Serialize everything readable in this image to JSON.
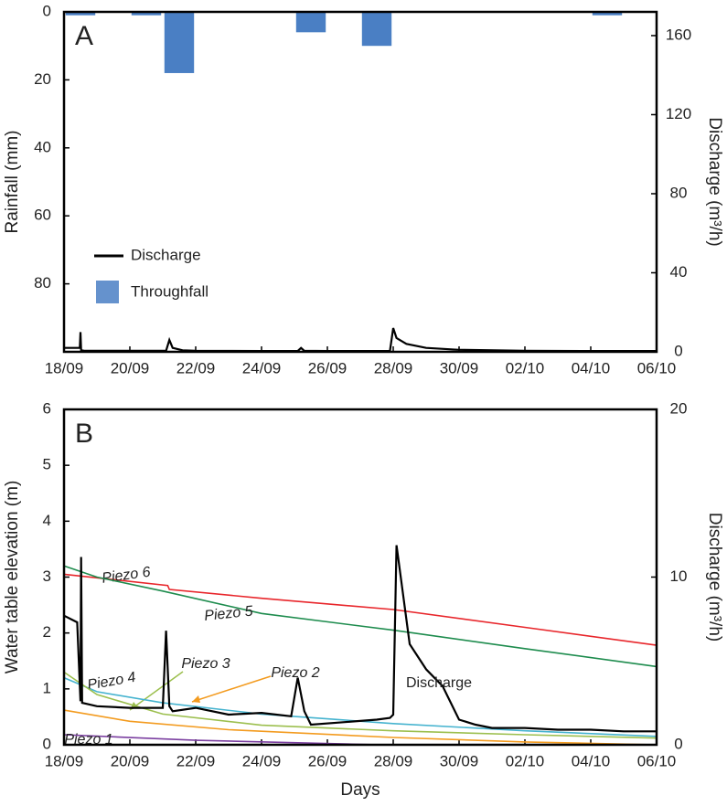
{
  "chart_data": [
    {
      "type": "combo",
      "panel_label": "A",
      "ylabel": "Rainfall (mm)",
      "y2label": "Discharge (m³/h)",
      "xlim": [
        0,
        18
      ],
      "xticks": [
        {
          "value": 0,
          "label": "18/09"
        },
        {
          "value": 2,
          "label": "20/09"
        },
        {
          "value": 4,
          "label": "22/09"
        },
        {
          "value": 6,
          "label": "24/09"
        },
        {
          "value": 8,
          "label": "26/09"
        },
        {
          "value": 10,
          "label": "28/09"
        },
        {
          "value": 12,
          "label": "30/09"
        },
        {
          "value": 14,
          "label": "02/10"
        },
        {
          "value": 16,
          "label": "04/10"
        },
        {
          "value": 18,
          "label": "06/10"
        }
      ],
      "ylim": [
        0,
        100
      ],
      "y_inverted": true,
      "yticks": [
        0,
        20,
        40,
        60,
        80
      ],
      "y2lim": [
        0,
        172
      ],
      "y2ticks": [
        0,
        40,
        80,
        120,
        160
      ],
      "legend": "lower left",
      "series": [
        {
          "name": "Discharge",
          "type": "line",
          "axis": "y2",
          "color": "#000000",
          "x": [
            0,
            0.48,
            0.5,
            0.52,
            0.6,
            1,
            2,
            3.1,
            3.2,
            3.3,
            3.6,
            4,
            6,
            7.1,
            7.2,
            7.3,
            8,
            9.9,
            10.0,
            10.1,
            10.4,
            11,
            12,
            14,
            16,
            18
          ],
          "values": [
            2,
            2,
            10,
            0.8,
            0.6,
            0.5,
            0.5,
            0.5,
            6,
            2,
            0.8,
            0.5,
            0.4,
            0.4,
            2,
            0.5,
            0.4,
            0.4,
            12,
            7,
            4,
            2,
            1,
            0.5,
            0.4,
            0.4
          ]
        },
        {
          "name": "Throughfall",
          "type": "bar",
          "color": "#4a7fc4",
          "x": [
            0.5,
            2.5,
            3.5,
            7.5,
            9.5,
            16.5
          ],
          "values": [
            1,
            1,
            18,
            6,
            10,
            1
          ]
        }
      ]
    },
    {
      "type": "line",
      "panel_label": "B",
      "xlabel": "Days",
      "ylabel": "Water table elevation (m)",
      "y2label": "Discharge (m³/h)",
      "xlim": [
        0,
        18
      ],
      "xticks": [
        {
          "value": 0,
          "label": "18/09"
        },
        {
          "value": 2,
          "label": "20/09"
        },
        {
          "value": 4,
          "label": "22/09"
        },
        {
          "value": 6,
          "label": "24/09"
        },
        {
          "value": 8,
          "label": "26/09"
        },
        {
          "value": 10,
          "label": "28/09"
        },
        {
          "value": 12,
          "label": "30/09"
        },
        {
          "value": 14,
          "label": "02/10"
        },
        {
          "value": 16,
          "label": "04/10"
        },
        {
          "value": 18,
          "label": "06/10"
        }
      ],
      "ylim": [
        0,
        6
      ],
      "yticks": [
        0,
        1,
        2,
        3,
        4,
        5,
        6
      ],
      "y2lim": [
        0,
        20
      ],
      "y2ticks": [
        0,
        10,
        20
      ],
      "series": [
        {
          "name": "Piezo 6",
          "color": "#e8262b",
          "x": [
            0,
            3.15,
            3.2,
            6,
            10,
            14,
            18
          ],
          "values": [
            3.05,
            2.85,
            2.78,
            2.62,
            2.42,
            2.1,
            1.78
          ]
        },
        {
          "name": "Piezo 5",
          "color": "#1e8c4e",
          "x": [
            0,
            1,
            3,
            6,
            10,
            14,
            18
          ],
          "values": [
            3.2,
            3.0,
            2.75,
            2.35,
            2.05,
            1.72,
            1.4
          ]
        },
        {
          "name": "Piezo 4",
          "color": "#45b3cf",
          "x": [
            0,
            1,
            3,
            6,
            10,
            14,
            18
          ],
          "values": [
            1.2,
            0.95,
            0.75,
            0.55,
            0.38,
            0.25,
            0.15
          ]
        },
        {
          "name": "Piezo 3",
          "color": "#9cbf4e",
          "x": [
            0,
            1,
            3,
            6,
            10,
            14,
            18
          ],
          "values": [
            1.3,
            0.9,
            0.55,
            0.35,
            0.25,
            0.18,
            0.12
          ]
        },
        {
          "name": "Piezo 2",
          "color": "#f39b1f",
          "x": [
            0,
            2,
            5,
            10,
            14,
            18
          ],
          "values": [
            0.62,
            0.42,
            0.27,
            0.13,
            0.05,
            0
          ]
        },
        {
          "name": "Piezo 1",
          "color": "#7b3fa0",
          "x": [
            0,
            4,
            9.6
          ],
          "values": [
            0.18,
            0.08,
            0
          ]
        },
        {
          "name": "Discharge",
          "color": "#000000",
          "axis": "y2",
          "x": [
            0,
            0.4,
            0.5,
            0.52,
            0.55,
            1,
            2,
            3.0,
            3.1,
            3.2,
            3.3,
            4,
            5,
            6,
            6.9,
            7.1,
            7.3,
            7.5,
            9.5,
            9.9,
            10.0,
            10.1,
            10.5,
            11,
            11.5,
            12,
            12.5,
            13,
            14,
            15,
            16,
            17,
            18
          ],
          "values": [
            7.7,
            7.3,
            2.6,
            11.2,
            2.5,
            2.3,
            2.2,
            2.2,
            6.8,
            2.3,
            2.0,
            2.2,
            1.8,
            1.9,
            1.7,
            4.0,
            2.0,
            1.2,
            1.5,
            1.6,
            1.8,
            11.9,
            6,
            4.5,
            3.5,
            1.5,
            1.2,
            1.0,
            1.0,
            0.9,
            0.9,
            0.8,
            0.8
          ]
        }
      ]
    }
  ]
}
